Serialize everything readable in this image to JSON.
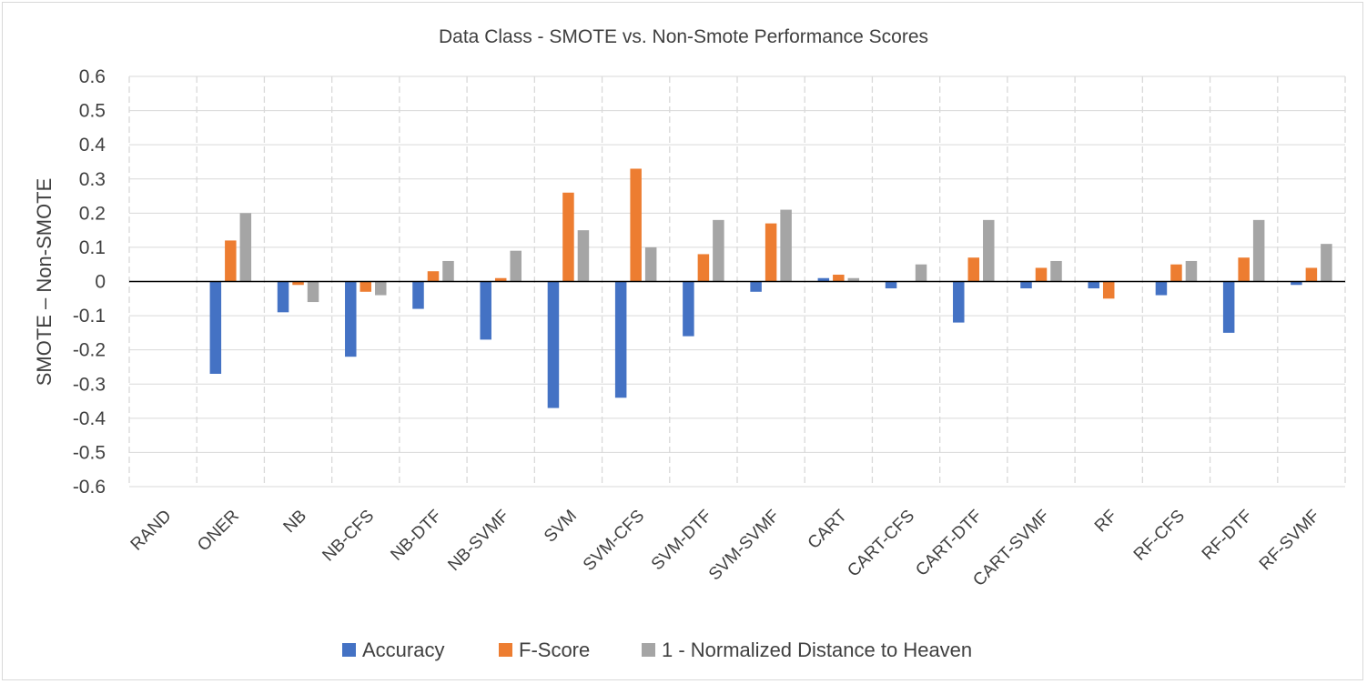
{
  "chart_data": {
    "type": "bar",
    "title": "Data Class - SMOTE vs. Non-Smote Performance Scores",
    "xlabel": "",
    "ylabel": "SMOTE – Non-SMOTE",
    "ylim": [
      -0.6,
      0.6
    ],
    "yticks": [
      "0.6",
      "0.5",
      "0.4",
      "0.3",
      "0.2",
      "0.1",
      "0",
      "-0.1",
      "-0.2",
      "-0.3",
      "-0.4",
      "-0.5",
      "-0.6"
    ],
    "grid": true,
    "legend_position": "bottom",
    "categories": [
      "RAND",
      "ONER",
      "NB",
      "NB-CFS",
      "NB-DTF",
      "NB-SVMF",
      "SVM",
      "SVM-CFS",
      "SVM-DTF",
      "SVM-SVMF",
      "CART",
      "CART-CFS",
      "CART-DTF",
      "CART-SVMF",
      "RF",
      "RF-CFS",
      "RF-DTF",
      "RF-SVMF"
    ],
    "series": [
      {
        "name": "Accuracy",
        "color": "#4472c4",
        "values": [
          0,
          -0.27,
          -0.09,
          -0.22,
          -0.08,
          -0.17,
          -0.37,
          -0.34,
          -0.16,
          -0.03,
          0.01,
          -0.02,
          -0.12,
          -0.02,
          -0.02,
          -0.04,
          -0.15,
          -0.01
        ]
      },
      {
        "name": "F-Score",
        "color": "#ed7d31",
        "values": [
          0,
          0.12,
          -0.01,
          -0.03,
          0.03,
          0.01,
          0.26,
          0.33,
          0.08,
          0.17,
          0.02,
          0,
          0.07,
          0.04,
          -0.05,
          0.05,
          0.07,
          0.04
        ]
      },
      {
        "name": "1 - Normalized Distance to Heaven",
        "color": "#a5a5a5",
        "values": [
          0,
          0.2,
          -0.06,
          -0.04,
          0.06,
          0.09,
          0.15,
          0.1,
          0.18,
          0.21,
          0.01,
          0.05,
          0.18,
          0.06,
          0,
          0.06,
          0.18,
          0.11
        ]
      }
    ]
  }
}
